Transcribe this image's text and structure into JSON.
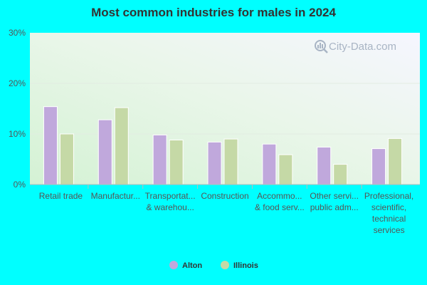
{
  "chart_data": {
    "type": "bar",
    "title": "Most common industries for males in 2024",
    "categories": [
      [
        "Retail trade"
      ],
      [
        "Manufactur..."
      ],
      [
        "Transportat...",
        "& warehou..."
      ],
      [
        "Construction"
      ],
      [
        "Accommo...",
        "& food serv..."
      ],
      [
        "Other servi...",
        "public adm..."
      ],
      [
        "Professional,",
        "scientific,",
        "technical",
        "services"
      ]
    ],
    "series": [
      {
        "name": "Alton",
        "color": "#c0a8dc",
        "values": [
          15.4,
          12.8,
          9.8,
          8.4,
          8.0,
          7.4,
          7.1
        ]
      },
      {
        "name": "Illinois",
        "color": "#c5d9a6",
        "values": [
          10.0,
          15.2,
          8.8,
          9.0,
          5.9,
          4.0,
          9.1
        ]
      }
    ],
    "ylim": [
      0,
      30
    ],
    "yticks": [
      0,
      10,
      20,
      30
    ],
    "ytick_labels": [
      "0%",
      "10%",
      "20%",
      "30%"
    ],
    "grid": true,
    "legend_position": "bottom-center",
    "watermark": "City-Data.com"
  }
}
